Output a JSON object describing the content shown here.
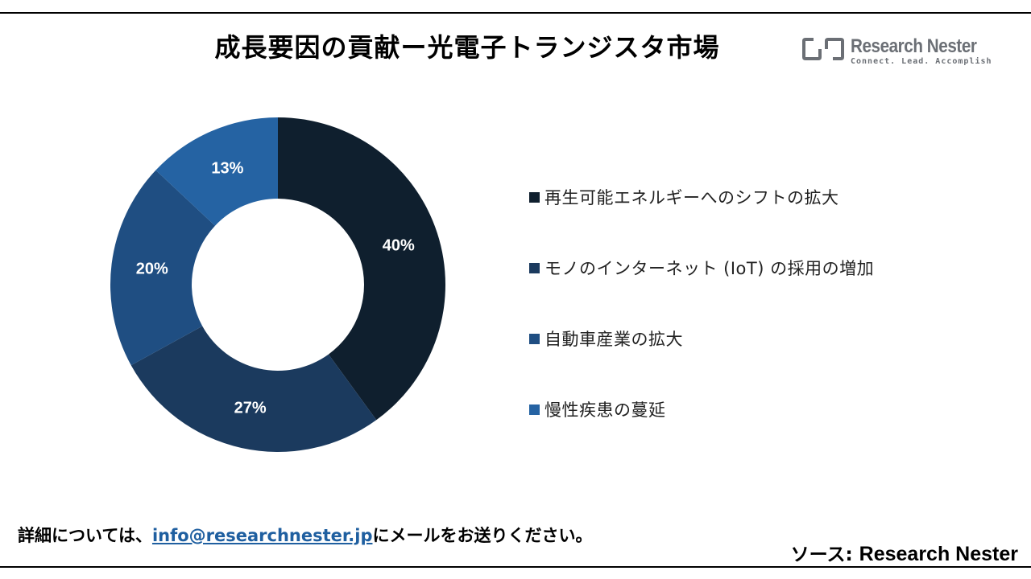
{
  "header": {
    "title": "成長要因の貢献ー光電子トランジスタ市場"
  },
  "logo": {
    "name": "Research Nester",
    "tagline": "Connect. Lead. Accomplish",
    "icon": "research-nester-logo-icon"
  },
  "chart_data": {
    "type": "pie",
    "donut": true,
    "categories": [
      "再生可能エネルギーへのシフトの拡大",
      "モノのインターネット (IoT) の採用の増加",
      "自動車産業の拡大",
      "慢性疾患の蔓延"
    ],
    "values": [
      40,
      27,
      20,
      13
    ],
    "labels": [
      "40%",
      "27%",
      "20%",
      "13%"
    ],
    "colors": [
      "#0f1f2e",
      "#1b3a5e",
      "#1f4e82",
      "#2563a3"
    ],
    "legend_position": "right"
  },
  "footer": {
    "prefix": "詳細については、",
    "email": "info@researchnester.jp",
    "suffix": "にメールをお送りください。",
    "source_label": "ソース: ",
    "source_name": "Research Nester"
  }
}
